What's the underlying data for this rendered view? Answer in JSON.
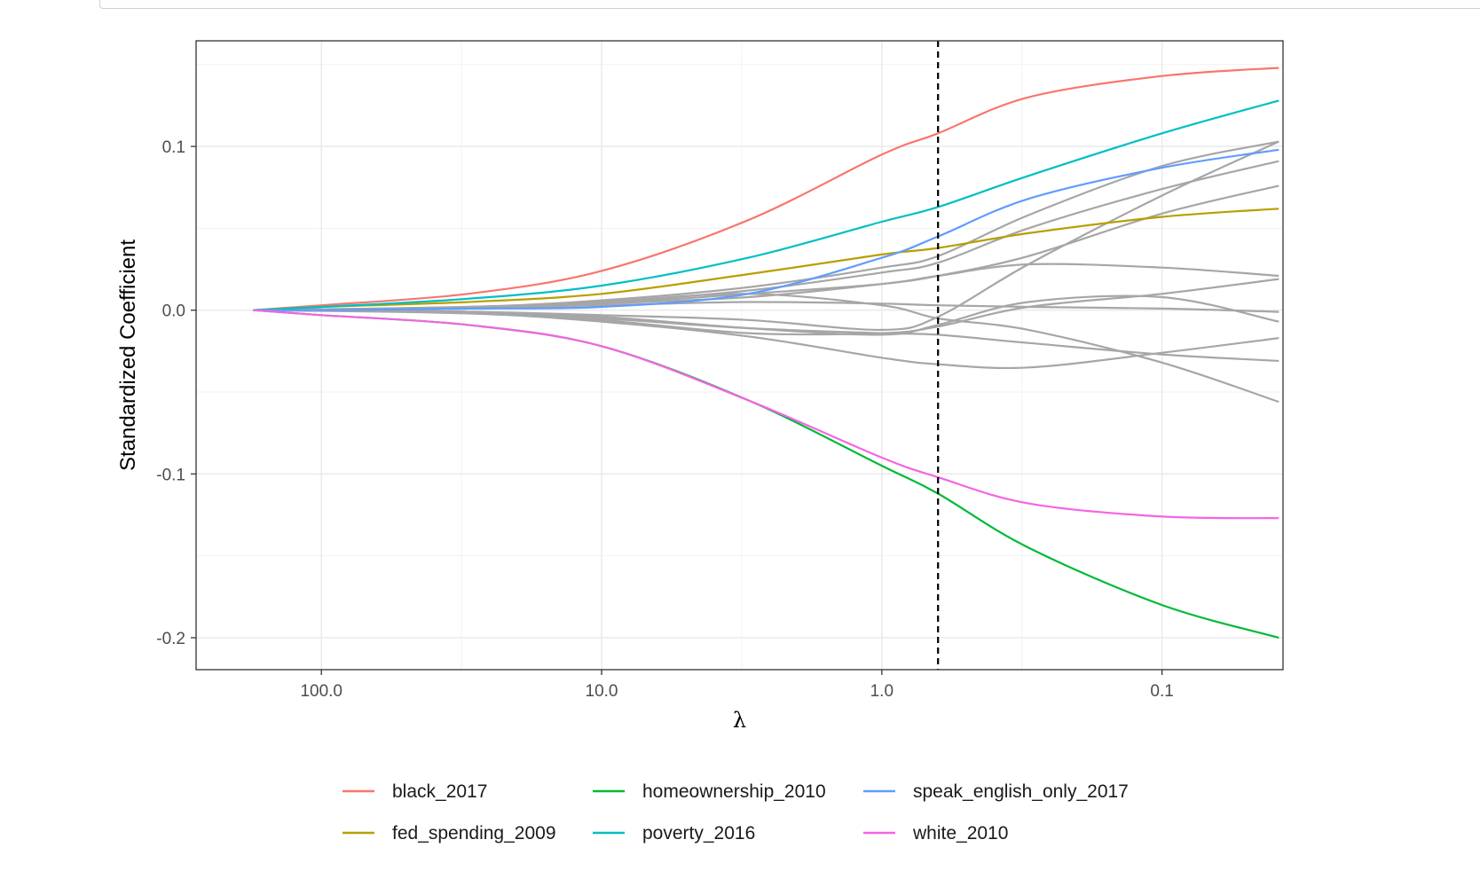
{
  "chart_data": {
    "type": "line",
    "xlabel": "λ",
    "ylabel": "Standardized Coefficient",
    "x_scale": "log10-reversed",
    "xlim": [
      280,
      0.037
    ],
    "ylim": [
      -0.2195,
      0.1645
    ],
    "x_ticks": [
      {
        "value": 100,
        "label": "100.0"
      },
      {
        "value": 10,
        "label": "10.0"
      },
      {
        "value": 1,
        "label": "1.0"
      },
      {
        "value": 0.1,
        "label": "0.1"
      }
    ],
    "y_ticks": [
      {
        "value": 0.1,
        "label": "0.1"
      },
      {
        "value": 0.0,
        "label": "0.0"
      },
      {
        "value": -0.1,
        "label": "-0.1"
      },
      {
        "value": -0.2,
        "label": "-0.2"
      }
    ],
    "reference_line": {
      "x": 0.63,
      "style": "dashed",
      "color": "#000000"
    },
    "grid": true,
    "legend_position": "bottom",
    "series": [
      {
        "name": "black_2017",
        "color": "#F8766D",
        "x": [
          175.2,
          100,
          30,
          10,
          3,
          1,
          0.63,
          0.3,
          0.1,
          0.0383
        ],
        "y": [
          0,
          0.003,
          0.01,
          0.024,
          0.055,
          0.095,
          0.108,
          0.13,
          0.143,
          0.148
        ]
      },
      {
        "name": "fed_spending_2009",
        "color": "#B79F00",
        "x": [
          175.2,
          100,
          30,
          10,
          3,
          1,
          0.63,
          0.3,
          0.1,
          0.0383
        ],
        "y": [
          0,
          0.002,
          0.005,
          0.01,
          0.022,
          0.034,
          0.038,
          0.047,
          0.057,
          0.062
        ]
      },
      {
        "name": "homeownership_2010",
        "color": "#00BA38",
        "x": [
          175.2,
          100,
          30,
          10,
          3,
          1,
          0.63,
          0.3,
          0.1,
          0.0383
        ],
        "y": [
          0,
          -0.003,
          -0.009,
          -0.022,
          -0.055,
          -0.095,
          -0.112,
          -0.145,
          -0.18,
          -0.2
        ]
      },
      {
        "name": "poverty_2016",
        "color": "#00BFC4",
        "x": [
          175.2,
          100,
          30,
          10,
          3,
          1,
          0.63,
          0.3,
          0.1,
          0.0383
        ],
        "y": [
          0,
          0.002,
          0.007,
          0.015,
          0.032,
          0.054,
          0.063,
          0.082,
          0.108,
          0.128
        ]
      },
      {
        "name": "speak_english_only_2017",
        "color": "#619CFF",
        "x": [
          175.2,
          100,
          30,
          10,
          3,
          1,
          0.63,
          0.3,
          0.1,
          0.0383
        ],
        "y": [
          0,
          0,
          0.001,
          0.002,
          0.01,
          0.032,
          0.045,
          0.068,
          0.087,
          0.098
        ]
      },
      {
        "name": "white_2010",
        "color": "#F564E3",
        "x": [
          175.2,
          100,
          30,
          10,
          3,
          1,
          0.63,
          0.3,
          0.1,
          0.0383
        ],
        "y": [
          0,
          -0.003,
          -0.009,
          -0.022,
          -0.055,
          -0.09,
          -0.102,
          -0.118,
          -0.126,
          -0.127
        ]
      },
      {
        "name": "",
        "color": "#a6a6a6",
        "x": [
          175.2,
          30,
          10,
          3,
          1,
          0.63,
          0.3,
          0.1,
          0.0383
        ],
        "y": [
          0,
          0.002,
          0.006,
          0.014,
          0.026,
          0.033,
          0.058,
          0.088,
          0.103
        ]
      },
      {
        "name": "",
        "color": "#a6a6a6",
        "x": [
          175.2,
          30,
          10,
          3,
          1,
          0.63,
          0.3,
          0.1,
          0.0383
        ],
        "y": [
          0,
          0.002,
          0.005,
          0.012,
          0.023,
          0.029,
          0.05,
          0.074,
          0.091
        ]
      },
      {
        "name": "",
        "color": "#a6a6a6",
        "x": [
          175.2,
          30,
          10,
          3,
          1,
          0.63,
          0.3,
          0.1,
          0.0383
        ],
        "y": [
          0,
          -0.001,
          -0.003,
          -0.006,
          -0.012,
          -0.004,
          0.028,
          0.07,
          0.103
        ]
      },
      {
        "name": "",
        "color": "#a6a6a6",
        "x": [
          175.2,
          30,
          10,
          3,
          1,
          0.63,
          0.3,
          0.1,
          0.0383
        ],
        "y": [
          0,
          0.001,
          0.004,
          0.008,
          0.016,
          0.021,
          0.033,
          0.059,
          0.076
        ]
      },
      {
        "name": "",
        "color": "#a6a6a6",
        "x": [
          175.2,
          30,
          10,
          3,
          1,
          0.63,
          0.3,
          0.1,
          0.0383
        ],
        "y": [
          0,
          0.001,
          0.004,
          0.01,
          0.016,
          0.021,
          0.028,
          0.026,
          0.021
        ]
      },
      {
        "name": "",
        "color": "#a6a6a6",
        "x": [
          175.2,
          30,
          10,
          3,
          1,
          0.63,
          0.3,
          0.1,
          0.0383
        ],
        "y": [
          0,
          0.001,
          0.005,
          0.01,
          0.003,
          -0.005,
          -0.012,
          -0.032,
          -0.056
        ]
      },
      {
        "name": "",
        "color": "#a6a6a6",
        "x": [
          175.2,
          30,
          10,
          3,
          1,
          0.63,
          0.3,
          0.1,
          0.0383
        ],
        "y": [
          0,
          0.001,
          0.003,
          0.005,
          0.004,
          0.003,
          0.002,
          0.001,
          -0.001
        ]
      },
      {
        "name": "",
        "color": "#a6a6a6",
        "x": [
          175.2,
          30,
          10,
          3,
          1,
          0.63,
          0.3,
          0.1,
          0.0383
        ],
        "y": [
          0,
          -0.001,
          -0.005,
          -0.011,
          -0.014,
          -0.015,
          -0.02,
          -0.027,
          -0.031
        ]
      },
      {
        "name": "",
        "color": "#a6a6a6",
        "x": [
          175.2,
          30,
          10,
          3,
          1,
          0.63,
          0.3,
          0.1,
          0.0383
        ],
        "y": [
          0,
          -0.001,
          -0.004,
          -0.011,
          -0.015,
          -0.009,
          0.005,
          0.008,
          -0.007
        ]
      },
      {
        "name": "",
        "color": "#a6a6a6",
        "x": [
          175.2,
          30,
          10,
          3,
          1,
          0.63,
          0.3,
          0.1,
          0.0383
        ],
        "y": [
          0,
          -0.001,
          -0.006,
          -0.014,
          -0.014,
          -0.01,
          0.002,
          0.01,
          0.019
        ]
      },
      {
        "name": "",
        "color": "#a6a6a6",
        "x": [
          175.2,
          30,
          10,
          3,
          1,
          0.63,
          0.3,
          0.1,
          0.0383
        ],
        "y": [
          0,
          -0.002,
          -0.007,
          -0.016,
          -0.029,
          -0.033,
          -0.035,
          -0.026,
          -0.017
        ]
      }
    ],
    "legend": [
      {
        "label": "black_2017",
        "color": "#F8766D"
      },
      {
        "label": "homeownership_2010",
        "color": "#00BA38"
      },
      {
        "label": "speak_english_only_2017",
        "color": "#619CFF"
      },
      {
        "label": "fed_spending_2009",
        "color": "#B79F00"
      },
      {
        "label": "poverty_2016",
        "color": "#00BFC4"
      },
      {
        "label": "white_2010",
        "color": "#F564E3"
      }
    ]
  }
}
